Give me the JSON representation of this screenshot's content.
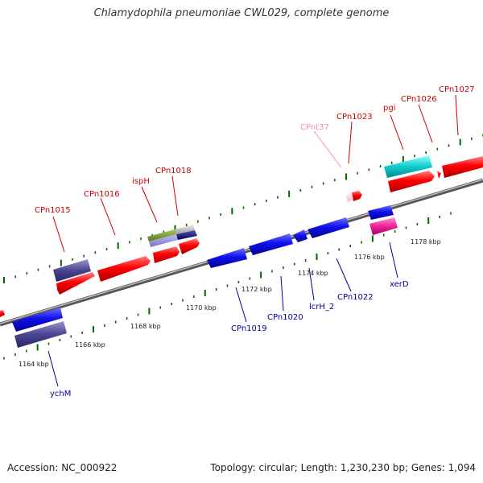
{
  "title": "Chlamydophila pneumoniae CWL029, complete genome",
  "footer": {
    "accession": "Accession: NC_000922",
    "summary": "Topology: circular; Length: 1,230,230 bp; Genes: 1,094"
  },
  "colors": {
    "forward_label": "#cc0000",
    "reverse_label": "#000099",
    "trna_label": "#ff88bb",
    "tick": "#006600",
    "backbone": "#888888"
  },
  "scale_labels": [
    "1164 kbp",
    "1166 kbp",
    "1168 kbp",
    "1170 kbp",
    "1172 kbp",
    "1174 kbp",
    "1176 kbp",
    "1178 kbp"
  ],
  "forward_gene_labels": [
    "CPn1015",
    "CPn1016",
    "ispH",
    "CPn1018",
    "CPn1023",
    "pgi",
    "CPn1026",
    "CPn1027"
  ],
  "trna_labels": [
    "CPnt37"
  ],
  "reverse_gene_labels": [
    "ychM",
    "CPn1019",
    "CPn1020",
    "lcrH_2",
    "CPn1022",
    "xerD"
  ]
}
